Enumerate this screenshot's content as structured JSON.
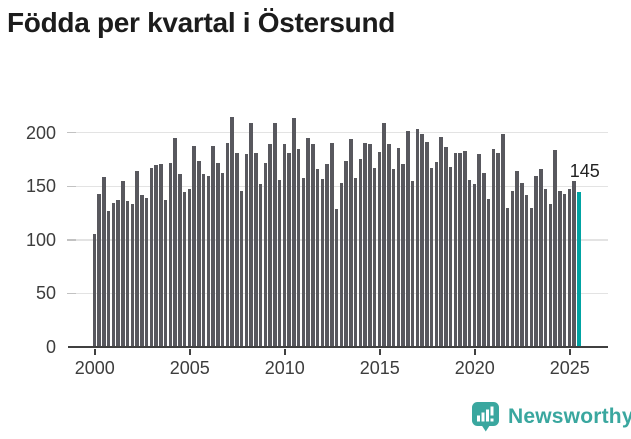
{
  "title": "Födda per kvartal i Östersund",
  "chart_data": {
    "type": "bar",
    "title": "Födda per kvartal i Östersund",
    "frequency": "quarterly",
    "start_period": "2000-Q1",
    "end_period": "2025-Q3",
    "values": [
      105,
      143,
      159,
      127,
      134,
      137,
      155,
      136,
      133,
      164,
      142,
      139,
      167,
      170,
      171,
      137,
      172,
      195,
      161,
      145,
      147,
      188,
      174,
      161,
      160,
      188,
      172,
      162,
      190,
      215,
      181,
      146,
      180,
      209,
      181,
      152,
      172,
      189,
      209,
      156,
      189,
      181,
      214,
      185,
      158,
      195,
      189,
      166,
      157,
      171,
      190,
      129,
      153,
      174,
      194,
      158,
      175,
      190,
      189,
      167,
      182,
      209,
      189,
      166,
      186,
      171,
      202,
      155,
      203,
      199,
      191,
      167,
      173,
      196,
      187,
      168,
      181,
      181,
      183,
      156,
      152,
      180,
      162,
      138,
      185,
      181,
      199,
      130,
      146,
      164,
      153,
      142,
      130,
      160,
      166,
      147,
      133,
      184,
      146,
      143,
      147,
      155,
      145
    ],
    "x_tick_labels": [
      "2000",
      "2005",
      "2010",
      "2015",
      "2020",
      "2025"
    ],
    "y_tick_labels": [
      "0",
      "50",
      "100",
      "150",
      "200"
    ],
    "ylim": [
      0,
      220
    ],
    "grid": "horizontal",
    "legend": "none",
    "bar_color": "#58585e",
    "highlight": {
      "index": 102,
      "value": 145,
      "label": "145",
      "color": "#00a3a3"
    }
  },
  "footer": {
    "brand": "Newsworthy",
    "brand_color": "#3aa79f",
    "logo_icon": "speech-bubble-bar-chart-icon"
  }
}
